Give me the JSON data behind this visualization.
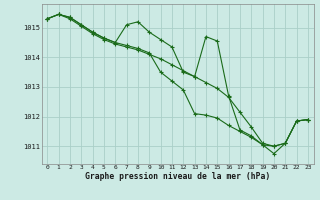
{
  "background_color": "#cceae4",
  "grid_color": "#aacfc8",
  "line_color": "#1a6b1a",
  "xlabel": "Graphe pression niveau de la mer (hPa)",
  "ylim": [
    1010.4,
    1015.8
  ],
  "yticks": [
    1011,
    1012,
    1013,
    1014,
    1015
  ],
  "xlim": [
    -0.5,
    23.5
  ],
  "xticks": [
    0,
    1,
    2,
    3,
    4,
    5,
    6,
    7,
    8,
    9,
    10,
    11,
    12,
    13,
    14,
    15,
    16,
    17,
    18,
    19,
    20,
    21,
    22,
    23
  ],
  "series": [
    [
      1015.3,
      1015.45,
      1015.35,
      1015.1,
      1014.85,
      1014.65,
      1014.5,
      1015.1,
      1015.2,
      1014.85,
      1014.6,
      1014.35,
      1013.5,
      1013.35,
      1014.7,
      1014.55,
      1012.7,
      1011.55,
      1011.35,
      1011.05,
      1010.75,
      1011.1,
      1011.85,
      1011.9
    ],
    [
      1015.3,
      1015.45,
      1015.35,
      1015.1,
      1014.85,
      1014.65,
      1014.5,
      1014.4,
      1014.3,
      1014.15,
      1013.5,
      1013.2,
      1012.9,
      1012.1,
      1012.05,
      1011.95,
      1011.7,
      1011.5,
      1011.3,
      1011.05,
      1011.0,
      1011.1,
      1011.85,
      1011.9
    ],
    [
      1015.3,
      1015.45,
      1015.3,
      1015.05,
      1014.8,
      1014.6,
      1014.45,
      1014.35,
      1014.25,
      1014.1,
      1013.95,
      1013.75,
      1013.55,
      1013.35,
      1013.15,
      1012.95,
      1012.65,
      1012.15,
      1011.65,
      1011.1,
      1011.0,
      1011.1,
      1011.85,
      1011.9
    ]
  ]
}
